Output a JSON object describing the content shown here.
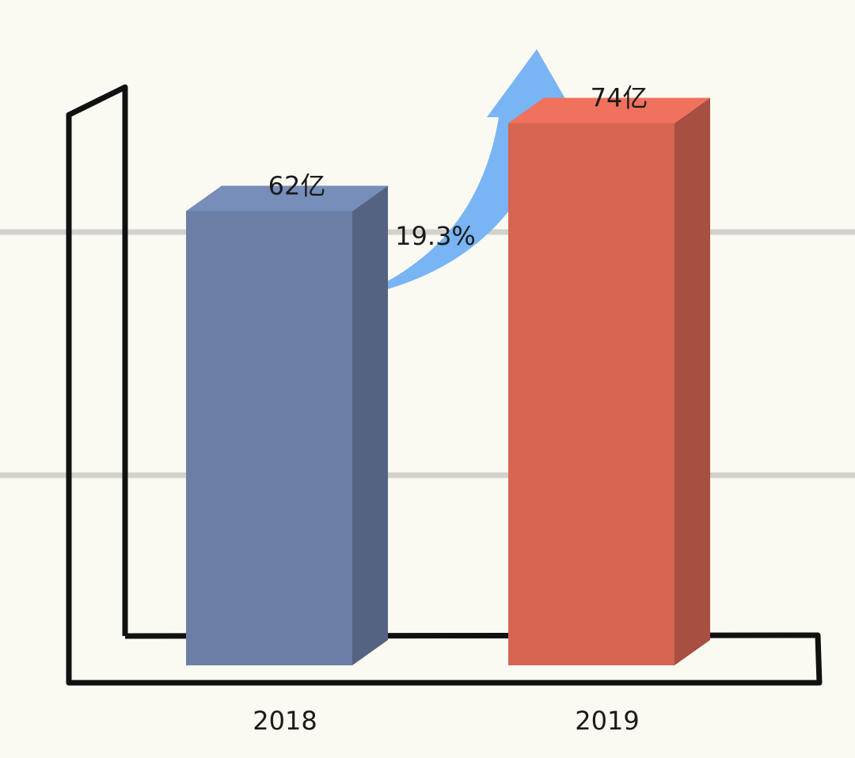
{
  "chart_data": {
    "type": "bar3d",
    "categories": [
      "2018",
      "2019"
    ],
    "values": [
      62,
      74
    ],
    "value_labels": [
      "62亿",
      "74亿"
    ],
    "colors": [
      "#6a7fa6",
      "#d66552"
    ],
    "annotation": "19.3%",
    "ylim": [
      0,
      80
    ]
  }
}
